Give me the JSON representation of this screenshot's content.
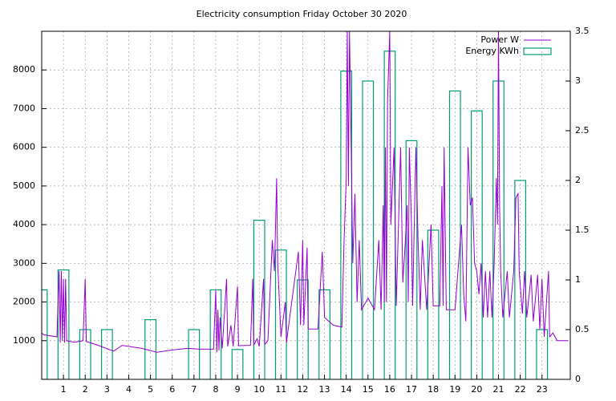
{
  "chart_data": {
    "type": "combo",
    "title": "Electricity consumption Friday October 30 2020",
    "xlim": [
      0,
      24.3
    ],
    "xticks": [
      1,
      2,
      3,
      4,
      5,
      6,
      7,
      8,
      9,
      10,
      11,
      12,
      13,
      14,
      15,
      16,
      17,
      18,
      19,
      20,
      21,
      22,
      23
    ],
    "ylim": [
      0,
      9000
    ],
    "yticks": [
      1000,
      2000,
      3000,
      4000,
      5000,
      6000,
      7000,
      8000
    ],
    "y2lim": [
      0,
      3.5
    ],
    "y2ticks": [
      0,
      0.5,
      1,
      1.5,
      2,
      2.5,
      3,
      3.5
    ],
    "grid": true,
    "legend": "top-right",
    "series": [
      {
        "name": "Power W",
        "type": "line",
        "color": "#9400d3",
        "x": [
          0,
          0.1,
          0.7,
          0.8,
          0.85,
          0.9,
          0.95,
          1.0,
          1.05,
          1.1,
          1.15,
          1.3,
          1.5,
          1.9,
          2.0,
          2.05,
          2.6,
          3.3,
          3.7,
          4.6,
          5.3,
          6.0,
          6.7,
          7.3,
          7.9,
          8.0,
          8.05,
          8.1,
          8.15,
          8.2,
          8.3,
          8.5,
          8.55,
          8.7,
          8.8,
          9.0,
          9.05,
          9.6,
          9.7,
          9.75,
          9.9,
          10.0,
          10.2,
          10.25,
          10.4,
          10.6,
          10.7,
          10.8,
          10.85,
          11.0,
          11.2,
          11.25,
          11.8,
          11.9,
          12.0,
          12.05,
          12.2,
          12.25,
          12.7,
          12.9,
          12.95,
          13.0,
          13.4,
          13.8,
          13.9,
          14.0,
          14.05,
          14.1,
          14.15,
          14.2,
          14.3,
          14.4,
          14.5,
          14.6,
          14.7,
          14.9,
          15.0,
          15.3,
          15.5,
          15.6,
          15.7,
          15.75,
          15.8,
          15.85,
          15.9,
          16.0,
          16.05,
          16.2,
          16.3,
          16.5,
          16.6,
          16.7,
          16.8,
          16.85,
          16.9,
          17.0,
          17.05,
          17.2,
          17.3,
          17.4,
          17.5,
          17.7,
          17.9,
          18.0,
          18.3,
          18.4,
          18.45,
          18.5,
          18.6,
          19.0,
          19.3,
          19.4,
          19.5,
          19.6,
          19.7,
          19.8,
          19.9,
          20.0,
          20.1,
          20.2,
          20.3,
          20.4,
          20.5,
          20.6,
          20.7,
          20.8,
          20.9,
          20.95,
          21.0,
          21.05,
          21.1,
          21.2,
          21.4,
          21.5,
          21.7,
          21.8,
          21.9,
          21.95,
          22.1,
          22.2,
          22.3,
          22.5,
          22.6,
          22.8,
          22.9,
          23.0,
          23.1,
          23.3,
          23.35,
          23.5,
          23.7,
          24.2
        ],
        "values": [
          1200,
          1150,
          1100,
          2800,
          950,
          2800,
          1000,
          2600,
          950,
          2600,
          1000,
          980,
          960,
          1000,
          2600,
          980,
          880,
          730,
          880,
          800,
          700,
          760,
          800,
          780,
          780,
          2300,
          700,
          1800,
          750,
          1600,
          800,
          2600,
          850,
          1400,
          850,
          2400,
          870,
          880,
          2600,
          880,
          1050,
          850,
          2600,
          900,
          1000,
          3600,
          2800,
          5200,
          3000,
          1100,
          2000,
          950,
          3300,
          1400,
          3600,
          1400,
          3400,
          1300,
          1300,
          3300,
          2500,
          1600,
          1400,
          1350,
          3600,
          5200,
          9000,
          5000,
          9000,
          7200,
          3000,
          4800,
          2000,
          3600,
          1800,
          2000,
          2100,
          1800,
          3600,
          1800,
          4500,
          2000,
          6000,
          2000,
          7200,
          9000,
          4000,
          6000,
          1900,
          6000,
          2500,
          3400,
          4500,
          2000,
          6000,
          4000,
          1900,
          6000,
          3600,
          1800,
          3600,
          1800,
          4000,
          1900,
          1900,
          5000,
          1900,
          6000,
          1800,
          1800,
          4000,
          2200,
          1500,
          6000,
          4500,
          4700,
          3000,
          2800,
          2200,
          3000,
          1600,
          2800,
          1600,
          2800,
          1600,
          3000,
          5200,
          4000,
          9000,
          4500,
          2800,
          1600,
          2800,
          1600,
          2800,
          4700,
          4800,
          2800,
          1700,
          2800,
          1600,
          2700,
          1500,
          2700,
          1300,
          2600,
          1100,
          2800,
          1100,
          1200,
          1000,
          1000
        ]
      },
      {
        "name": "Energy KWh",
        "type": "box",
        "axis": "y2",
        "color": "#009e73",
        "x": [
          0,
          1,
          2,
          3,
          4,
          5,
          6,
          7,
          8,
          9,
          10,
          11,
          12,
          13,
          14,
          15,
          16,
          17,
          18,
          19,
          20,
          21,
          22,
          23
        ],
        "values": [
          0.9,
          1.1,
          0.5,
          0.5,
          0,
          0.6,
          0,
          0.5,
          0.9,
          0.3,
          1.6,
          1.3,
          1.0,
          0.9,
          3.1,
          3.0,
          3.3,
          2.4,
          1.5,
          2.9,
          2.7,
          3.0,
          2.0,
          0.5
        ]
      }
    ]
  }
}
